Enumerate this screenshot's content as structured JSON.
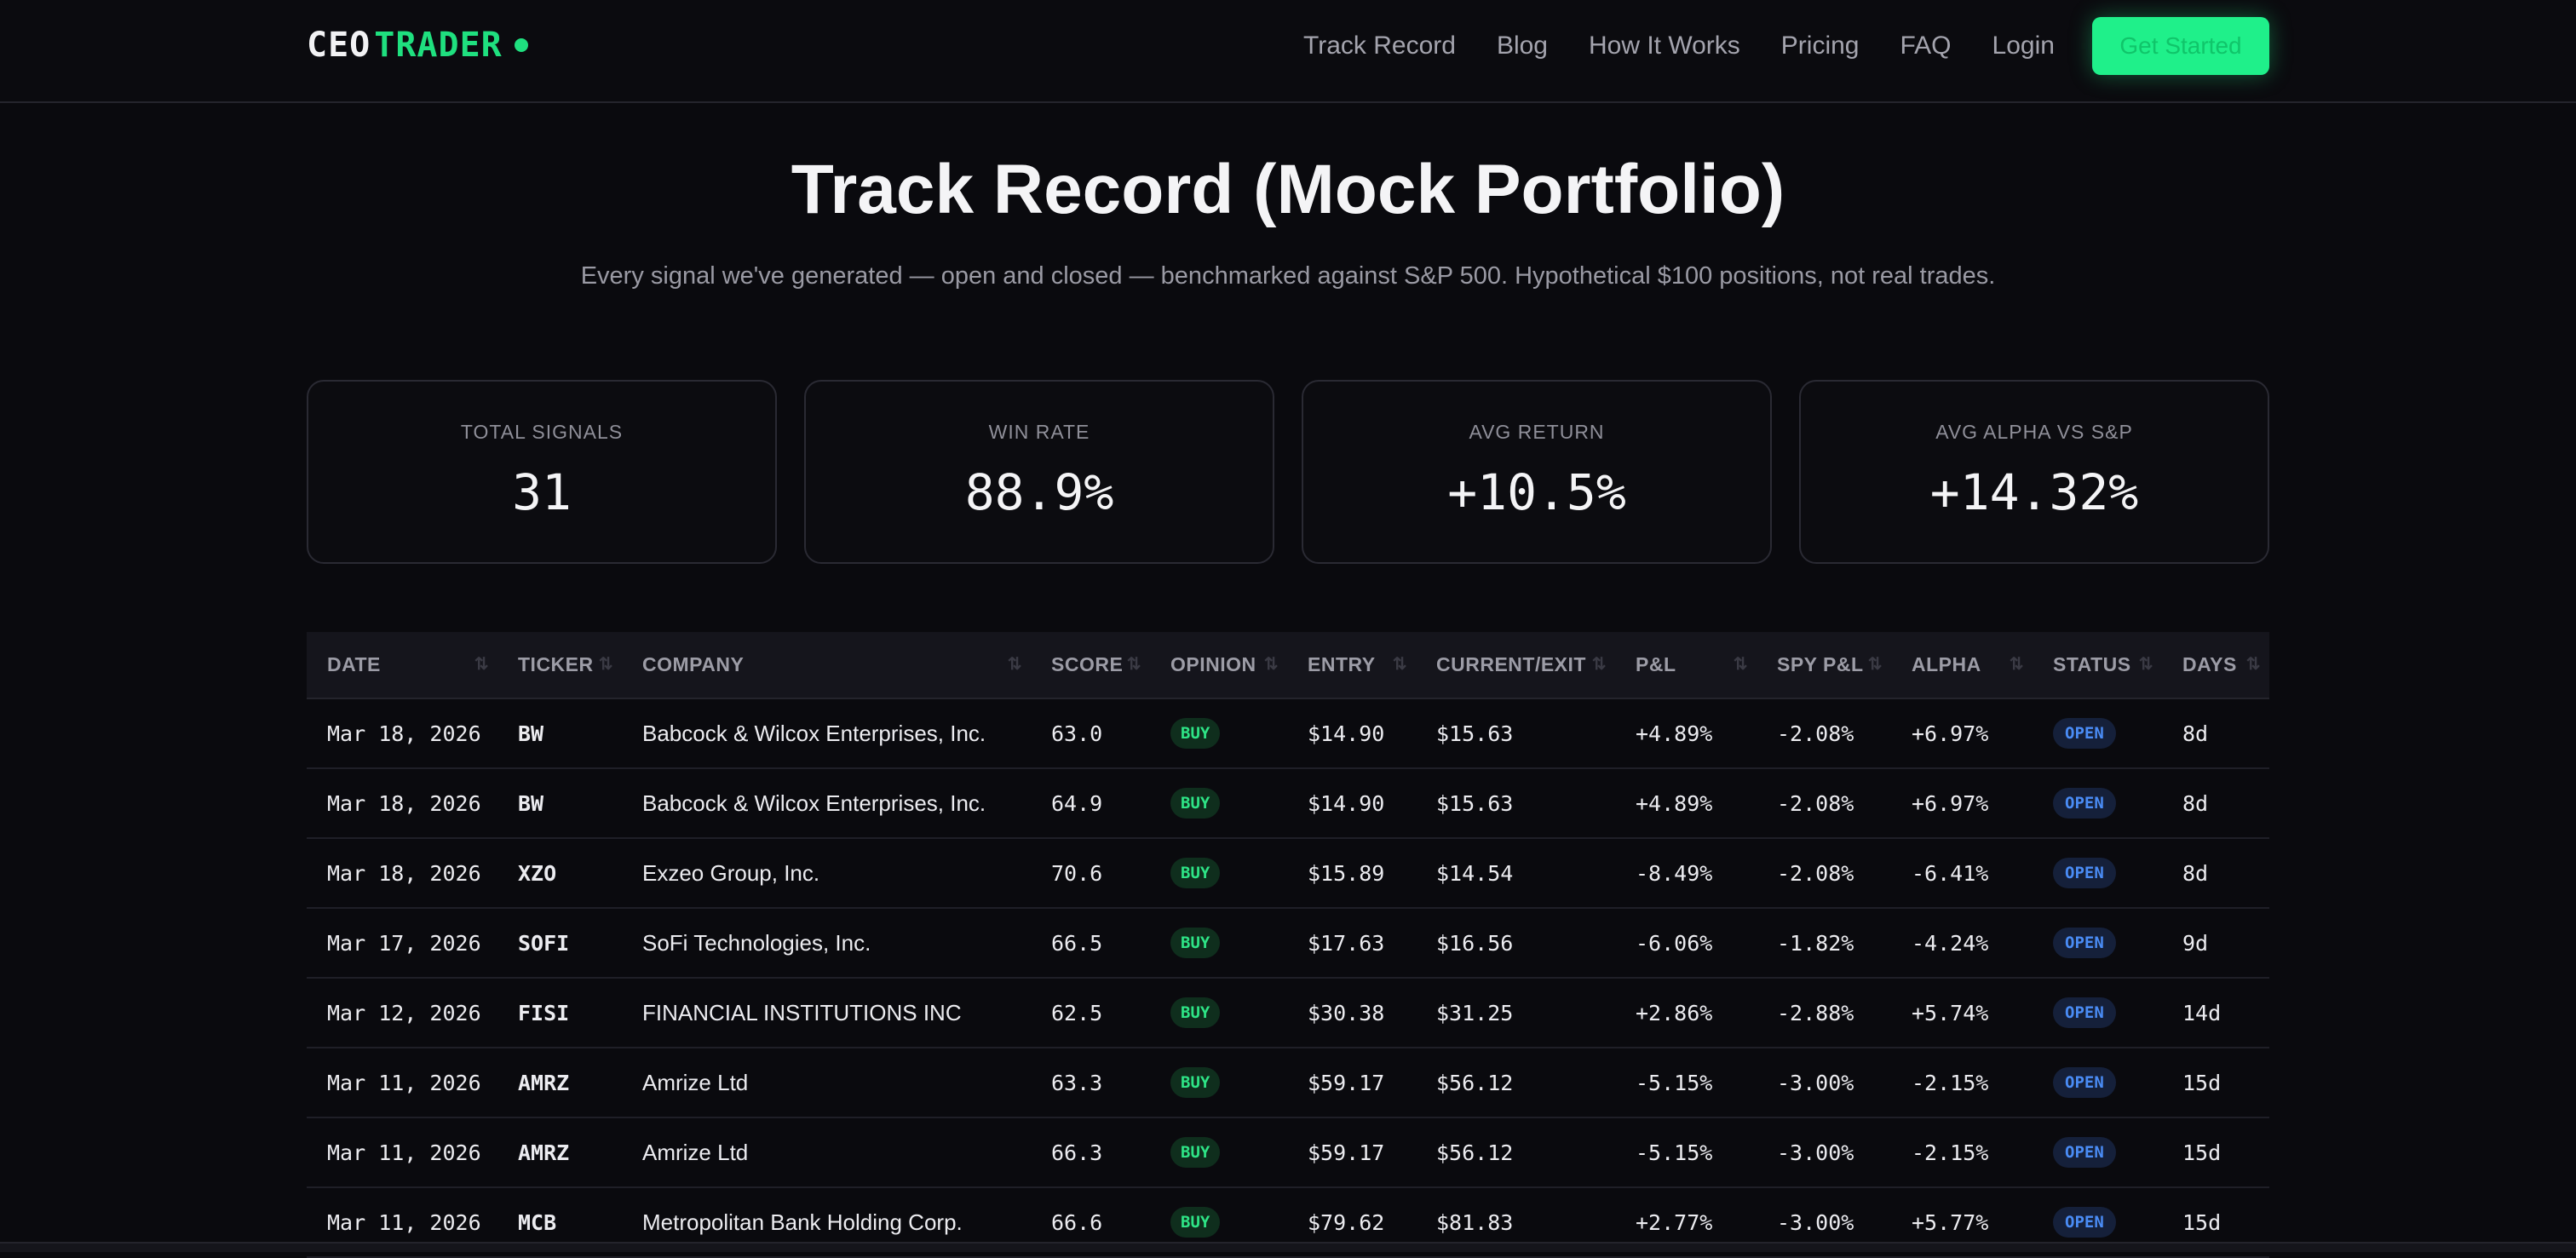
{
  "nav": {
    "logo_ceo": "CEO",
    "logo_trader": "TRADER",
    "links": [
      "Track Record",
      "Blog",
      "How It Works",
      "Pricing",
      "FAQ",
      "Login"
    ],
    "cta": "Get Started"
  },
  "header": {
    "title": "Track Record (Mock Portfolio)",
    "subtitle": "Every signal we've generated — open and closed — benchmarked against S&P 500. Hypothetical $100 positions, not real trades."
  },
  "stats": [
    {
      "label": "TOTAL SIGNALS",
      "value": "31"
    },
    {
      "label": "WIN RATE",
      "value": "88.9%"
    },
    {
      "label": "AVG RETURN",
      "value": "+10.5%"
    },
    {
      "label": "AVG ALPHA VS S&P",
      "value": "+14.32%"
    }
  ],
  "table": {
    "sort_icon": "⇅",
    "columns": [
      "DATE",
      "TICKER",
      "COMPANY",
      "SCORE",
      "OPINION",
      "ENTRY",
      "CURRENT/EXIT",
      "P&L",
      "SPY P&L",
      "ALPHA",
      "STATUS",
      "DAYS"
    ],
    "rows": [
      [
        "Mar 18, 2026",
        "BW",
        "Babcock & Wilcox Enterprises, Inc.",
        "63.0",
        "BUY",
        "$14.90",
        "$15.63",
        "+4.89%",
        "-2.08%",
        "+6.97%",
        "OPEN",
        "8d"
      ],
      [
        "Mar 18, 2026",
        "BW",
        "Babcock & Wilcox Enterprises, Inc.",
        "64.9",
        "BUY",
        "$14.90",
        "$15.63",
        "+4.89%",
        "-2.08%",
        "+6.97%",
        "OPEN",
        "8d"
      ],
      [
        "Mar 18, 2026",
        "XZO",
        "Exzeo Group, Inc.",
        "70.6",
        "BUY",
        "$15.89",
        "$14.54",
        "-8.49%",
        "-2.08%",
        "-6.41%",
        "OPEN",
        "8d"
      ],
      [
        "Mar 17, 2026",
        "SOFI",
        "SoFi Technologies, Inc.",
        "66.5",
        "BUY",
        "$17.63",
        "$16.56",
        "-6.06%",
        "-1.82%",
        "-4.24%",
        "OPEN",
        "9d"
      ],
      [
        "Mar 12, 2026",
        "FISI",
        "FINANCIAL INSTITUTIONS INC",
        "62.5",
        "BUY",
        "$30.38",
        "$31.25",
        "+2.86%",
        "-2.88%",
        "+5.74%",
        "OPEN",
        "14d"
      ],
      [
        "Mar 11, 2026",
        "AMRZ",
        "Amrize Ltd",
        "63.3",
        "BUY",
        "$59.17",
        "$56.12",
        "-5.15%",
        "-3.00%",
        "-2.15%",
        "OPEN",
        "15d"
      ],
      [
        "Mar 11, 2026",
        "AMRZ",
        "Amrize Ltd",
        "66.3",
        "BUY",
        "$59.17",
        "$56.12",
        "-5.15%",
        "-3.00%",
        "-2.15%",
        "OPEN",
        "15d"
      ],
      [
        "Mar 11, 2026",
        "MCB",
        "Metropolitan Bank Holding Corp.",
        "66.6",
        "BUY",
        "$79.62",
        "$81.83",
        "+2.77%",
        "-3.00%",
        "+5.77%",
        "OPEN",
        "15d"
      ]
    ]
  }
}
